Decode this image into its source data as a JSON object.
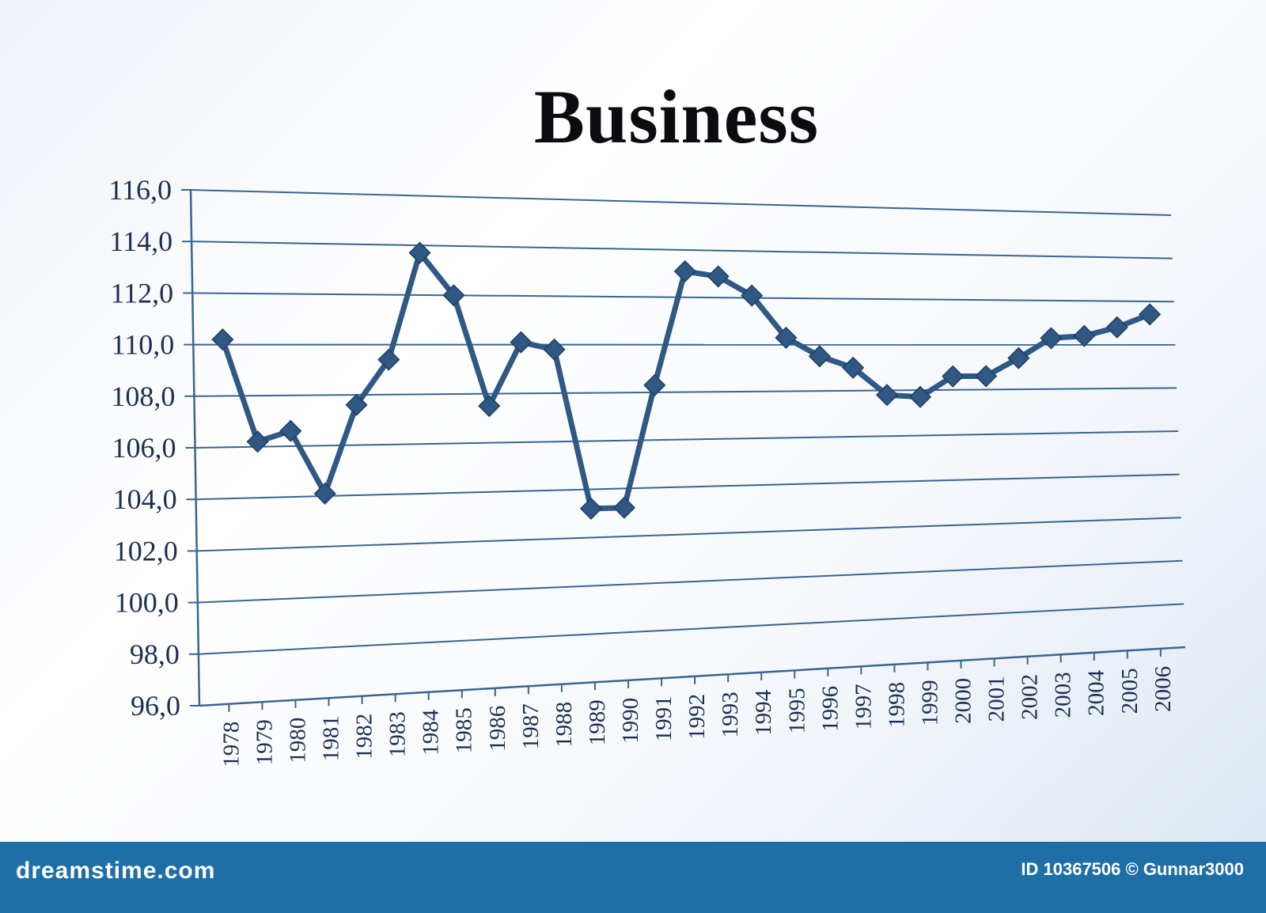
{
  "chart_data": {
    "type": "line",
    "title": "Business",
    "x": [
      "1978",
      "1979",
      "1980",
      "1981",
      "1982",
      "1983",
      "1984",
      "1985",
      "1986",
      "1987",
      "1988",
      "1989",
      "1990",
      "1991",
      "1992",
      "1993",
      "1994",
      "1995",
      "1996",
      "1997",
      "1998",
      "1999",
      "2000",
      "2001",
      "2002",
      "2003",
      "2004",
      "2005",
      "2006"
    ],
    "series": [
      {
        "values": [
          110.2,
          106.2,
          106.6,
          104.1,
          107.6,
          109.4,
          113.7,
          112.0,
          107.5,
          110.1,
          109.8,
          103.2,
          103.2,
          108.3,
          113.1,
          112.9,
          112.1,
          110.3,
          109.5,
          109.0,
          107.8,
          107.7,
          108.6,
          108.6,
          109.4,
          110.3,
          110.4,
          110.8,
          111.4
        ]
      }
    ],
    "y_tick_labels": [
      "96,0",
      "98,0",
      "100,0",
      "102,0",
      "104,0",
      "106,0",
      "108,0",
      "110,0",
      "112,0",
      "114,0",
      "116,0"
    ],
    "ylim": [
      96,
      116
    ],
    "grid": true,
    "line_color": "#2f5884"
  },
  "footer": {
    "brand": "dreamstime.com",
    "credit": "ID 10367506 © Gunnar3000"
  }
}
